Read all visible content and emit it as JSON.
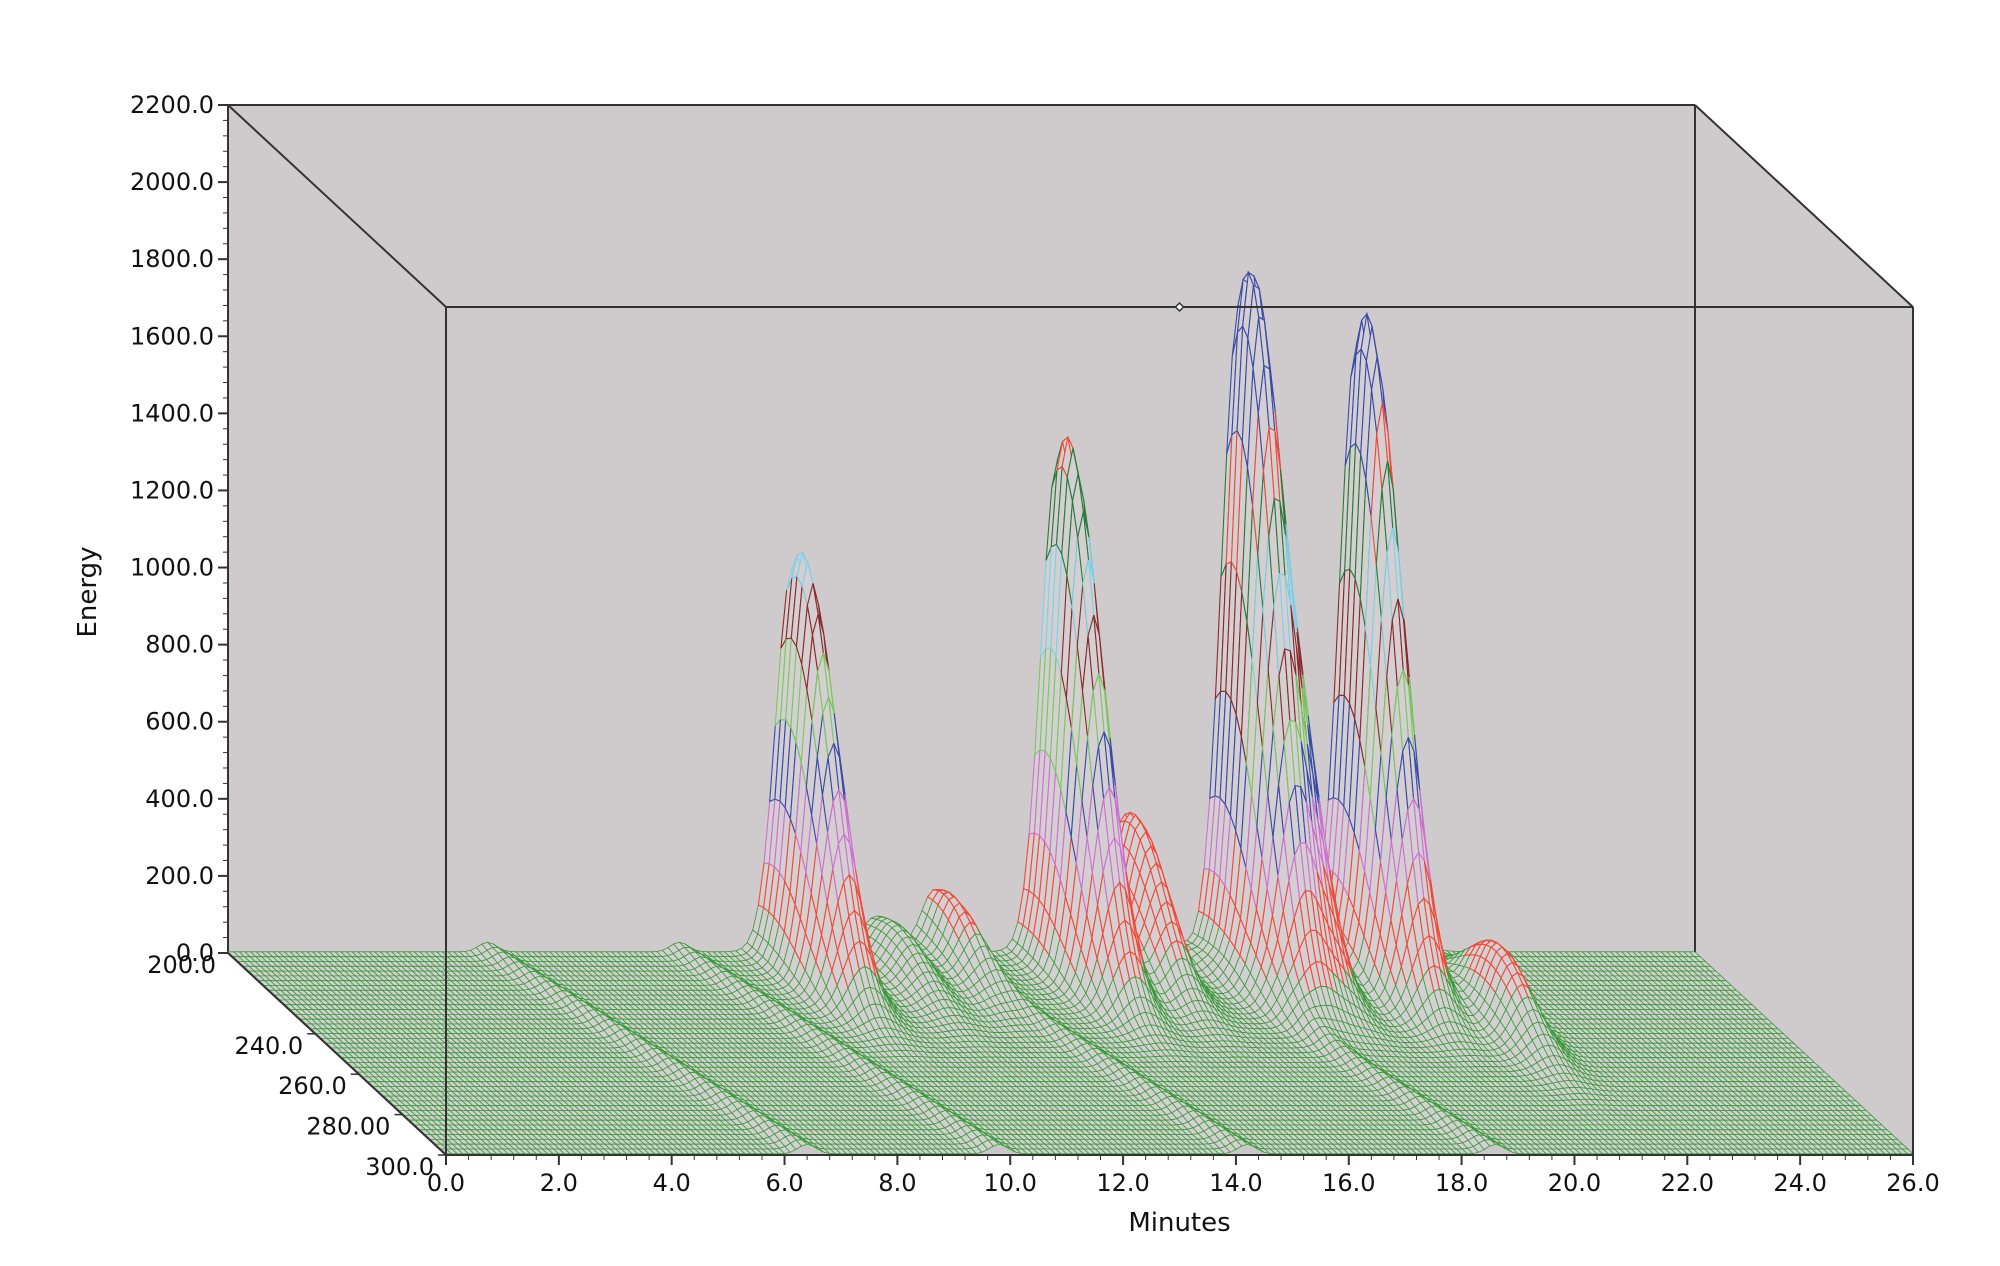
{
  "chart_data": {
    "type": "3d-surface",
    "title": "",
    "xlabel": "Minutes",
    "ylabel": "Energy",
    "zlabel": "",
    "x_range": [
      0,
      26
    ],
    "y_range": [
      0,
      2200
    ],
    "z_range": [
      200,
      300
    ],
    "x_ticks": [
      "0.0",
      "2.0",
      "4.0",
      "6.0",
      "8.0",
      "10.0",
      "12.0",
      "14.0",
      "16.0",
      "18.0",
      "20.0",
      "22.0",
      "24.0",
      "26.0"
    ],
    "y_ticks": [
      "0.0",
      "200.0",
      "400.0",
      "600.0",
      "800.0",
      "1000.0",
      "1200.0",
      "1400.0",
      "1600.0",
      "1800.0",
      "2000.0",
      "2200.0"
    ],
    "z_ticks": [
      "200.0",
      "240.0",
      "260.0",
      "280.00",
      "300.0"
    ],
    "z_tick_values": [
      200,
      240,
      260,
      280,
      300
    ],
    "height_color_bands": [
      {
        "max": 150,
        "color": "#3a9a3a"
      },
      {
        "max": 400,
        "color": "#f04a3a"
      },
      {
        "max": 560,
        "color": "#d070d0"
      },
      {
        "max": 720,
        "color": "#3a4aa8"
      },
      {
        "max": 880,
        "color": "#7ac860"
      },
      {
        "max": 1040,
        "color": "#8a2a2a"
      },
      {
        "max": 1200,
        "color": "#7ed0e8"
      },
      {
        "max": 1360,
        "color": "#2a7a3a"
      },
      {
        "max": 1500,
        "color": "#f04a3a"
      },
      {
        "max": 2200,
        "color": "#3a4aa8"
      }
    ],
    "peaks": [
      {
        "minutes": 10.0,
        "energy": 1060,
        "wavelength": 205
      },
      {
        "minutes": 11.5,
        "energy": 120,
        "wavelength": 210
      },
      {
        "minutes": 12.6,
        "energy": 160,
        "wavelength": 205
      },
      {
        "minutes": 14.7,
        "energy": 1360,
        "wavelength": 205
      },
      {
        "minutes": 15.9,
        "energy": 380,
        "wavelength": 205
      },
      {
        "minutes": 17.9,
        "energy": 1700,
        "wavelength": 205
      },
      {
        "minutes": 18.5,
        "energy": 760,
        "wavelength": 205
      },
      {
        "minutes": 20.0,
        "energy": 1680,
        "wavelength": 205
      },
      {
        "minutes": 21.2,
        "energy": 200,
        "wavelength": 235
      }
    ]
  }
}
